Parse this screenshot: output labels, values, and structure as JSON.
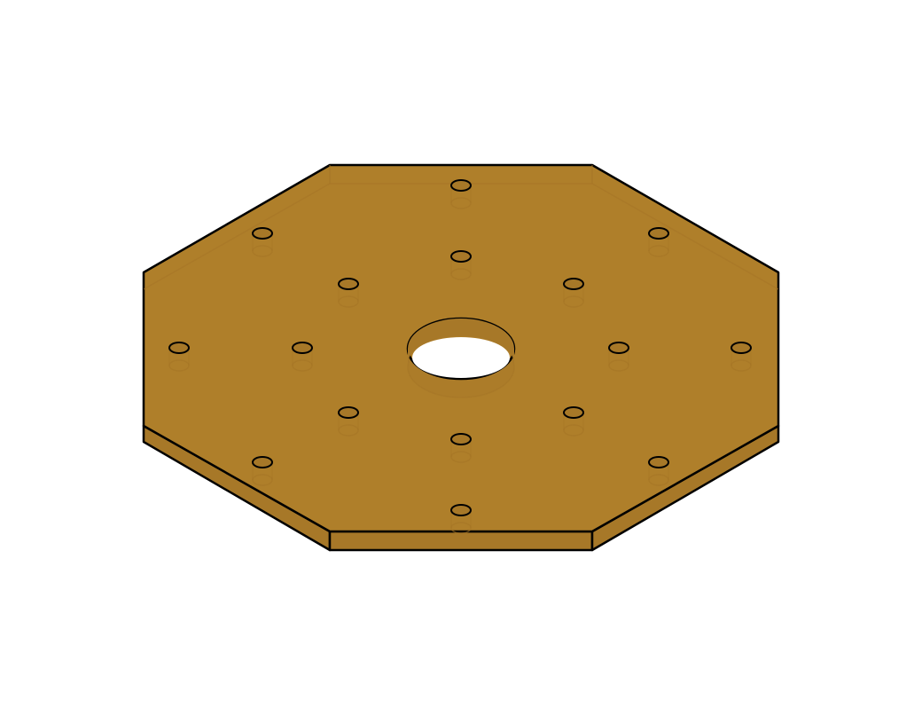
{
  "figure": {
    "subject": "octagonal-plate",
    "plate": {
      "shape": "octagon",
      "view": "isometric",
      "material_color": "#AF7F2A",
      "edge_color": "#A57526",
      "side_color": "#A77828",
      "outline_color": "#000000"
    },
    "center_bore": {
      "count": 1,
      "through": true,
      "background_color": "#ffffff"
    },
    "bolt_holes": {
      "outer_ring_count": 8,
      "inner_ring_count": 8,
      "total": 16,
      "style": "through-hole"
    }
  }
}
